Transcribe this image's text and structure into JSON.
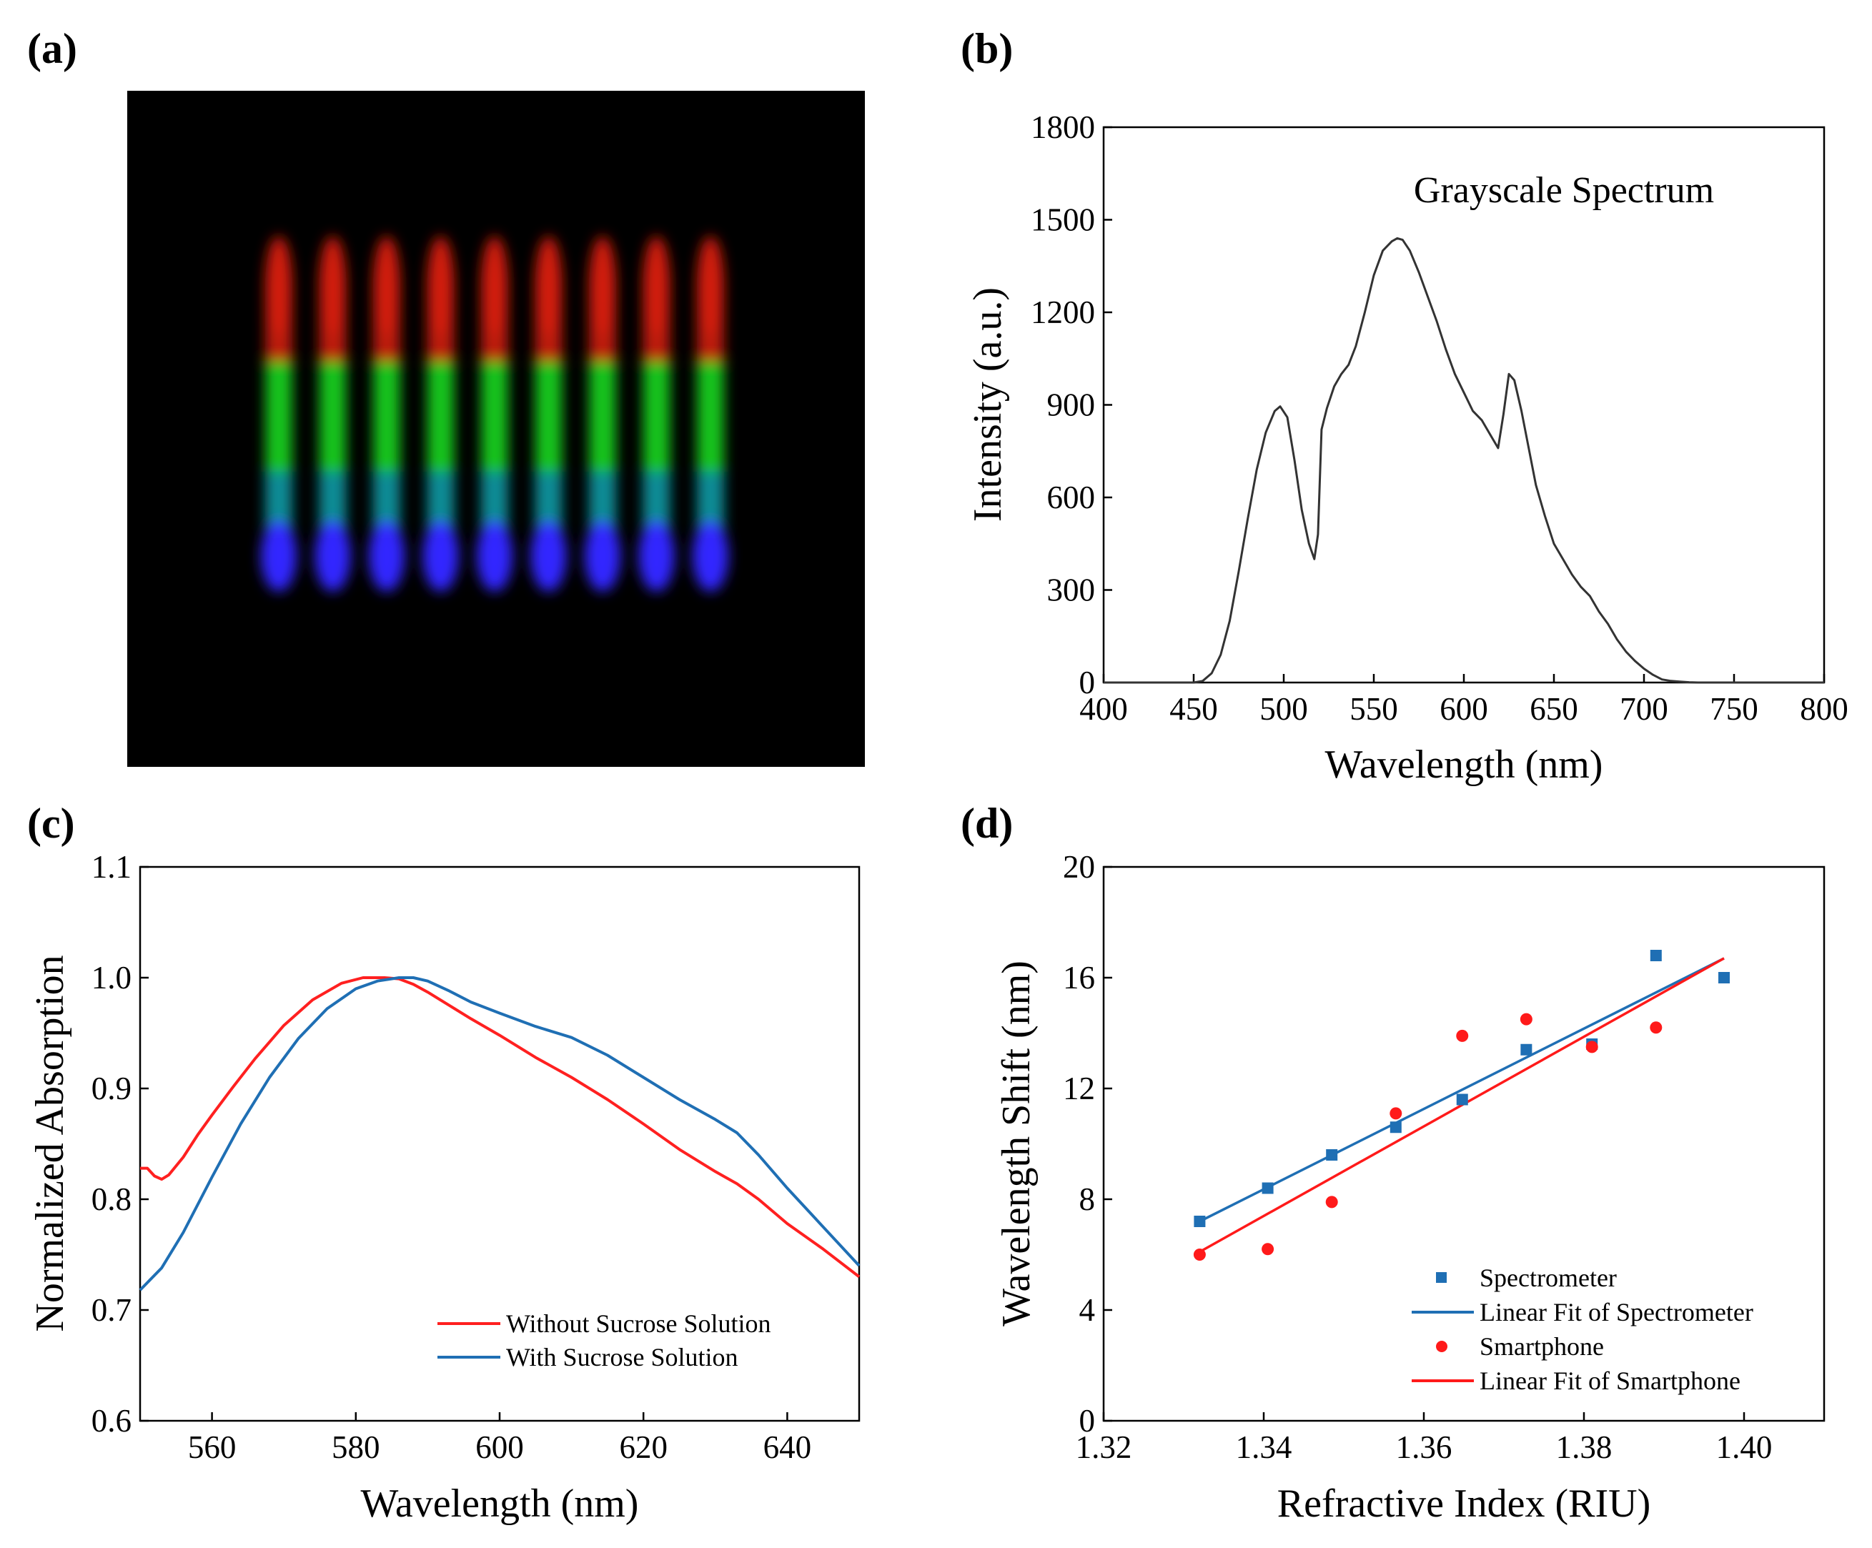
{
  "panels": {
    "a": {
      "label": "(a)"
    },
    "b": {
      "label": "(b)"
    },
    "c": {
      "label": "(c)"
    },
    "d": {
      "label": "(d)"
    }
  },
  "spectrum_photo": {
    "stripe_count": 9,
    "background": "#000000",
    "colors": {
      "red": "#d21e0f",
      "green": "#14c31e",
      "teal": "#0f8c96",
      "blue": "#3228ff"
    }
  },
  "chart_data": [
    {
      "panel": "b",
      "type": "line",
      "title": "",
      "annotation": "Grayscale Spectrum",
      "xlabel": "Wavelength (nm)",
      "ylabel": "Intensity (a.u.)",
      "xlim": [
        400,
        800
      ],
      "ylim": [
        0,
        1800
      ],
      "xticks": [
        400,
        450,
        500,
        550,
        600,
        650,
        700,
        750,
        800
      ],
      "yticks": [
        0,
        300,
        600,
        900,
        1200,
        1500,
        1800
      ],
      "series": [
        {
          "color": "#333333",
          "x": [
            400,
            450,
            455,
            460,
            465,
            470,
            475,
            480,
            485,
            490,
            495,
            498,
            502,
            506,
            510,
            514,
            517,
            519,
            521,
            524,
            528,
            532,
            536,
            540,
            545,
            550,
            555,
            560,
            563,
            566,
            570,
            575,
            580,
            585,
            590,
            595,
            600,
            605,
            610,
            615,
            619,
            622,
            625,
            628,
            632,
            636,
            640,
            645,
            650,
            655,
            660,
            665,
            670,
            675,
            680,
            685,
            690,
            695,
            700,
            705,
            710,
            715,
            720,
            725,
            730,
            800
          ],
          "y": [
            0,
            0,
            5,
            30,
            90,
            200,
            360,
            530,
            690,
            810,
            880,
            895,
            860,
            720,
            560,
            450,
            400,
            480,
            820,
            890,
            960,
            1000,
            1030,
            1090,
            1200,
            1320,
            1400,
            1430,
            1440,
            1435,
            1400,
            1330,
            1250,
            1170,
            1080,
            1000,
            940,
            880,
            850,
            800,
            760,
            870,
            1000,
            980,
            880,
            760,
            640,
            540,
            450,
            400,
            350,
            310,
            280,
            230,
            190,
            140,
            100,
            70,
            45,
            25,
            10,
            5,
            3,
            1,
            0,
            0
          ]
        }
      ]
    },
    {
      "panel": "c",
      "type": "line",
      "title": "",
      "xlabel": "Wavelength (nm)",
      "ylabel": "Normalized Absorption",
      "xlim": [
        550,
        650
      ],
      "ylim": [
        0.6,
        1.1
      ],
      "xticks": [
        560,
        580,
        600,
        620,
        640
      ],
      "yticks": [
        0.6,
        0.7,
        0.8,
        0.9,
        1.0,
        1.1
      ],
      "ytick_labels": [
        "0.6",
        "0.7",
        "0.8",
        "0.9",
        "1.0",
        "1.1"
      ],
      "series": [
        {
          "name": "Without Sucrose Solution",
          "color": "#ff2020",
          "x": [
            550,
            551,
            552,
            553,
            554,
            556,
            558,
            560,
            563,
            566,
            570,
            574,
            578,
            581,
            584,
            586,
            588,
            590,
            593,
            596,
            600,
            605,
            610,
            615,
            620,
            625,
            630,
            633,
            636,
            640,
            645,
            650
          ],
          "y": [
            0.828,
            0.828,
            0.821,
            0.818,
            0.822,
            0.838,
            0.858,
            0.876,
            0.902,
            0.927,
            0.957,
            0.98,
            0.995,
            1.0,
            1.0,
            0.999,
            0.994,
            0.987,
            0.975,
            0.963,
            0.948,
            0.928,
            0.91,
            0.89,
            0.868,
            0.845,
            0.825,
            0.814,
            0.8,
            0.778,
            0.755,
            0.73
          ]
        },
        {
          "name": "With Sucrose Solution",
          "color": "#1f6fb4",
          "x": [
            550,
            553,
            556,
            560,
            564,
            568,
            572,
            576,
            580,
            583,
            586,
            588,
            590,
            593,
            596,
            600,
            605,
            610,
            615,
            620,
            625,
            630,
            633,
            636,
            640,
            645,
            650
          ],
          "y": [
            0.718,
            0.738,
            0.77,
            0.82,
            0.868,
            0.91,
            0.945,
            0.972,
            0.99,
            0.997,
            1.0,
            1.0,
            0.997,
            0.988,
            0.978,
            0.968,
            0.956,
            0.946,
            0.93,
            0.91,
            0.89,
            0.872,
            0.86,
            0.84,
            0.81,
            0.775,
            0.74
          ]
        }
      ]
    },
    {
      "panel": "d",
      "type": "scatter",
      "title": "",
      "xlabel": "Refractive Index (RIU)",
      "ylabel": "Wavelength Shift (nm)",
      "xlim": [
        1.32,
        1.41
      ],
      "ylim": [
        0,
        20
      ],
      "xticks": [
        1.32,
        1.34,
        1.36,
        1.38,
        1.4
      ],
      "xtick_labels": [
        "1.32",
        "1.34",
        "1.36",
        "1.38",
        "1.40"
      ],
      "yticks": [
        0,
        4,
        8,
        12,
        16,
        20
      ],
      "series": [
        {
          "name": "Spectrometer",
          "marker": "square",
          "color": "#1f6fb4",
          "x": [
            1.332,
            1.3405,
            1.3485,
            1.3565,
            1.3648,
            1.3728,
            1.381,
            1.389,
            1.3975
          ],
          "y": [
            7.2,
            8.4,
            9.6,
            10.6,
            11.6,
            13.4,
            13.6,
            16.8,
            16.0
          ]
        },
        {
          "name": "Linear Fit of Spectrometer",
          "type": "line",
          "color": "#1f6fb4",
          "x": [
            1.332,
            1.3975
          ],
          "y": [
            7.2,
            16.7
          ]
        },
        {
          "name": "Smartphone",
          "marker": "circle",
          "color": "#ff1a1a",
          "x": [
            1.332,
            1.3405,
            1.3485,
            1.3565,
            1.3648,
            1.3728,
            1.381,
            1.389
          ],
          "y": [
            6.0,
            6.2,
            7.9,
            11.1,
            13.9,
            14.5,
            13.5,
            14.2
          ]
        },
        {
          "name": "Linear Fit of Smartphone",
          "type": "line",
          "color": "#ff1a1a",
          "x": [
            1.332,
            1.3975
          ],
          "y": [
            6.1,
            16.7
          ]
        }
      ]
    }
  ]
}
